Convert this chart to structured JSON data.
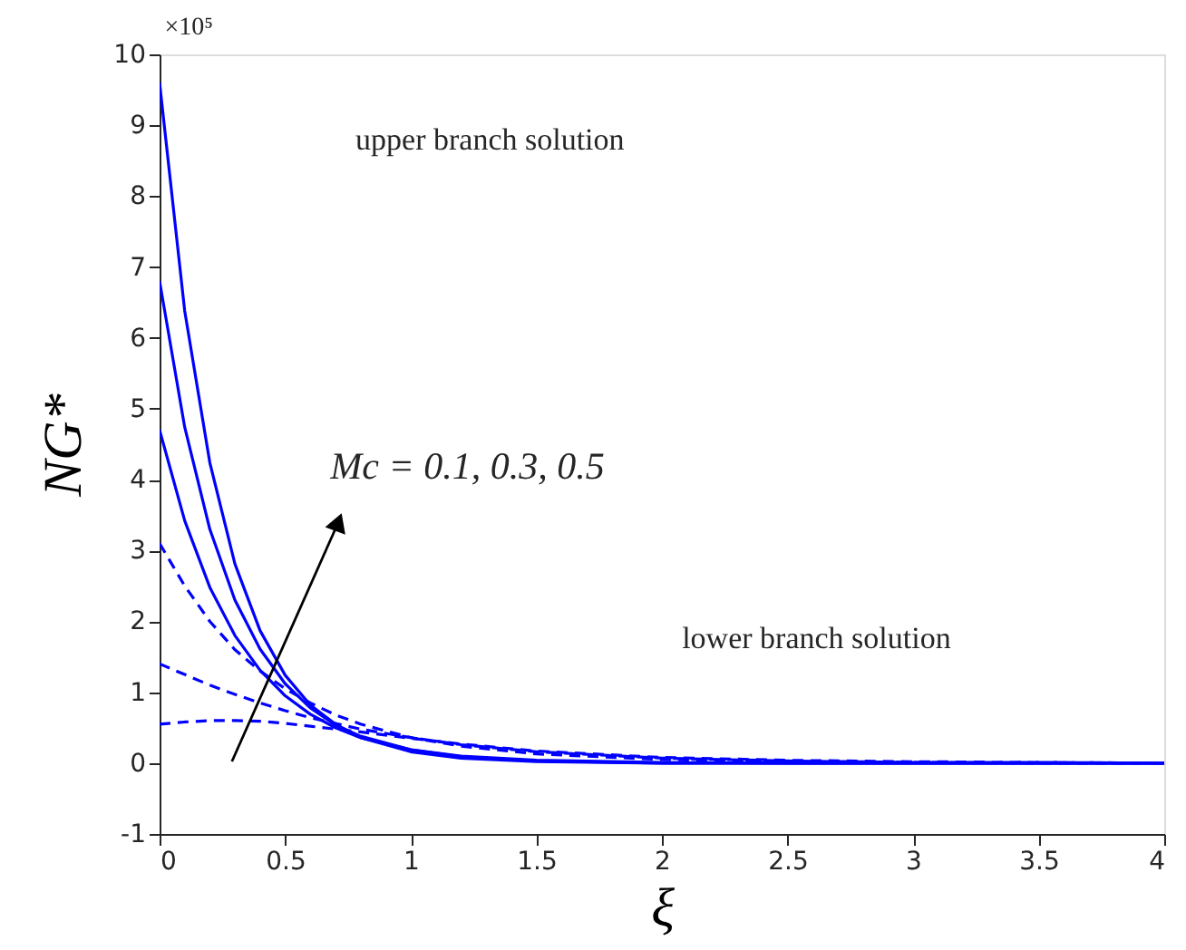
{
  "chart_data": {
    "type": "line",
    "xlabel": "ξ",
    "ylabel": "NG*",
    "x": [
      0,
      0.1,
      0.2,
      0.3,
      0.4,
      0.5,
      0.6,
      0.7,
      0.8,
      1,
      1.2,
      1.5,
      2,
      2.5,
      3,
      3.5,
      4
    ],
    "series": [
      {
        "color": "#0000ff",
        "line_style": "solid",
        "values": [
          9.6,
          6.38,
          4.24,
          2.81,
          1.87,
          1.24,
          0.82,
          0.55,
          0.36,
          0.16,
          0.07,
          0.02,
          0,
          0,
          0,
          0,
          0
        ]
      },
      {
        "color": "#0000ff",
        "line_style": "solid",
        "values": [
          6.8,
          4.74,
          3.3,
          2.3,
          1.61,
          1.12,
          0.78,
          0.54,
          0.38,
          0.19,
          0.09,
          0.03,
          0,
          0,
          0,
          0,
          0
        ]
      },
      {
        "color": "#0000ff",
        "line_style": "solid",
        "values": [
          4.7,
          3.42,
          2.48,
          1.8,
          1.31,
          0.95,
          0.69,
          0.5,
          0.36,
          0.19,
          0.1,
          0.04,
          0.01,
          0,
          0,
          0,
          0
        ]
      },
      {
        "color": "#0000ff",
        "line_style": "dashed",
        "values": [
          3.1,
          2.5,
          2.0,
          1.6,
          1.3,
          1.05,
          0.85,
          0.68,
          0.55,
          0.36,
          0.24,
          0.13,
          0.05,
          0.02,
          0.01,
          0,
          0
        ]
      },
      {
        "color": "#0000ff",
        "line_style": "dashed",
        "values": [
          1.4,
          1.25,
          1.1,
          0.97,
          0.85,
          0.74,
          0.64,
          0.56,
          0.48,
          0.36,
          0.26,
          0.16,
          0.07,
          0.03,
          0.01,
          0.01,
          0
        ]
      },
      {
        "color": "#0000ff",
        "line_style": "dashed",
        "values": [
          0.55,
          0.58,
          0.6,
          0.6,
          0.59,
          0.56,
          0.52,
          0.48,
          0.44,
          0.35,
          0.27,
          0.17,
          0.08,
          0.04,
          0.02,
          0.01,
          0
        ]
      }
    ],
    "xlim": [
      0,
      4
    ],
    "xticks": [
      0,
      0.5,
      1,
      1.5,
      2,
      2.5,
      3,
      3.5,
      4
    ],
    "ylim": [
      -1,
      10
    ],
    "yticks": [
      -1,
      0,
      1,
      2,
      3,
      4,
      5,
      6,
      7,
      8,
      9,
      10
    ],
    "annotations": [
      "×10⁵",
      "upper branch solution",
      "lower branch solution",
      "Mc = 0.1, 0.3, 0.5"
    ],
    "grid": false
  }
}
